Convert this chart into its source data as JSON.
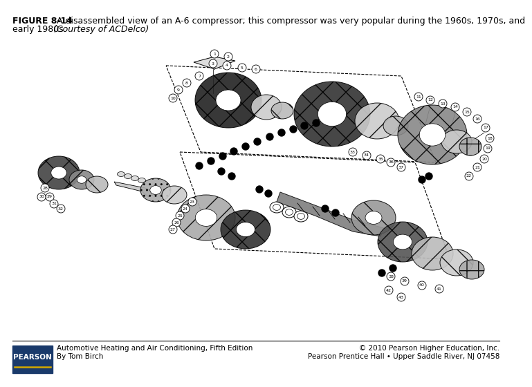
{
  "title_bold": "FIGURE 8-14",
  "title_normal": " A disassembled view of an A-6 compressor; this compressor was very popular during the 1960s, 1970s, and",
  "title_line2_normal": "early 1980s. ",
  "title_italic": "(Courtesy of ACDelco)",
  "footer_left_line1": "Automotive Heating and Air Conditioning, Fifth Edition",
  "footer_left_line2": "By Tom Birch",
  "footer_right_line1": "© 2010 Pearson Higher Education, Inc.",
  "footer_right_line2": "Pearson Prentice Hall • Upper Saddle River, NJ 07458",
  "pearson_label": "PEARSON",
  "bg_color": "#ffffff",
  "header_font_size": 9,
  "footer_font_size": 7.5,
  "pearson_bg": "#1a3a6b",
  "footer_line_color": "#000000",
  "gold_color": "#d4a800"
}
